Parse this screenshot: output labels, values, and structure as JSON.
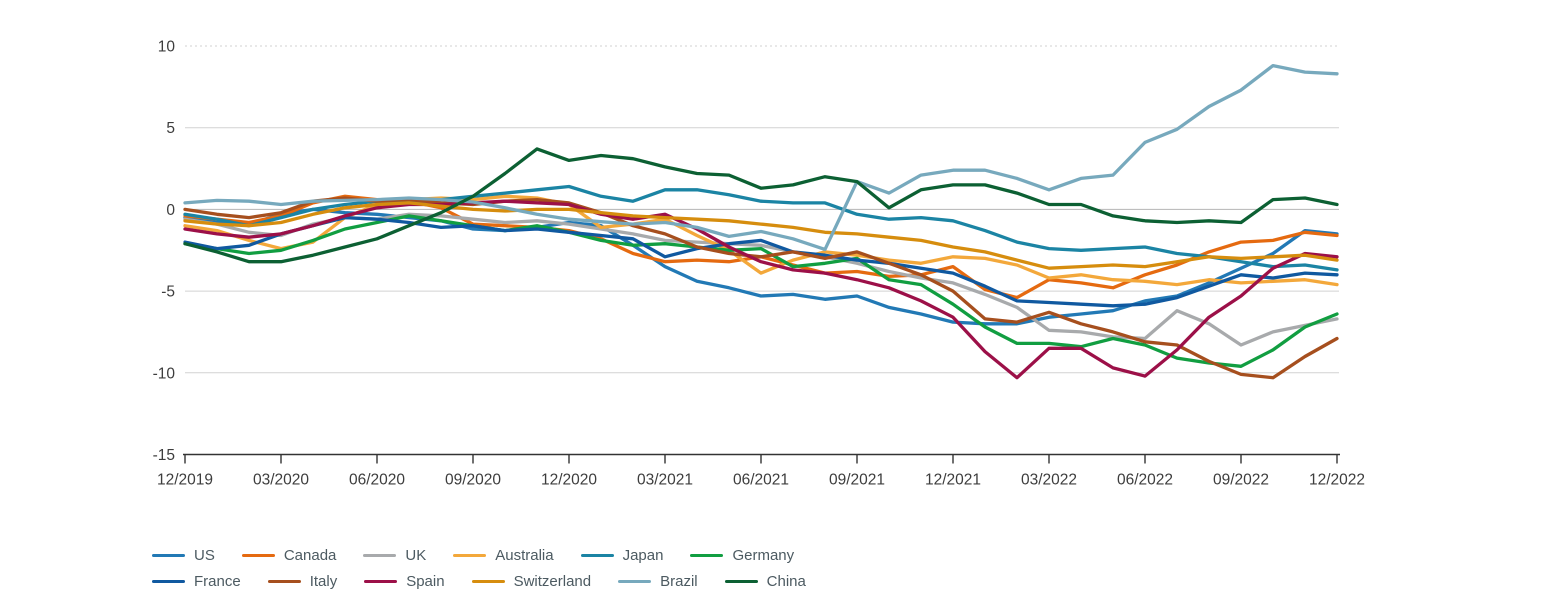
{
  "chart_data": {
    "type": "line",
    "title": "",
    "xlabel": "",
    "ylabel": "",
    "ylim": [
      -15,
      10
    ],
    "y_ticks": [
      10,
      5,
      0,
      -5,
      -10,
      -15
    ],
    "y_gridlines": [
      10,
      5,
      0,
      -5,
      -10
    ],
    "grid": "horizontal",
    "legend_position": "bottom-left",
    "x_tick_labels": [
      "12/2019",
      "03/2020",
      "06/2020",
      "09/2020",
      "12/2020",
      "03/2021",
      "06/2021",
      "09/2021",
      "12/2021",
      "03/2022",
      "06/2022",
      "09/2022",
      "12/2022"
    ],
    "x_points_per_tick": 3,
    "axis_label_color": "#3d3d3d",
    "gridline_color": "#d2d2d2",
    "zero_line_color": "#b5b5b5",
    "axis_line_color": "#333333",
    "series": [
      {
        "name": "US",
        "color": "#2279b5",
        "values": [
          -0.5,
          -0.8,
          -0.9,
          -0.3,
          0.0,
          -0.2,
          -0.3,
          -0.5,
          -0.7,
          -1.2,
          -1.3,
          -1.1,
          -0.8,
          -1.0,
          -2.2,
          -3.5,
          -4.4,
          -4.8,
          -5.3,
          -5.2,
          -5.5,
          -5.3,
          -6.0,
          -6.4,
          -6.9,
          -7.0,
          -7.0,
          -6.6,
          -6.4,
          -6.2,
          -5.6,
          -5.3,
          -4.5,
          -3.6,
          -2.7,
          -1.3,
          -1.5
        ]
      },
      {
        "name": "Canada",
        "color": "#e56a10",
        "values": [
          -0.4,
          -0.6,
          -0.8,
          -0.4,
          0.4,
          0.8,
          0.6,
          0.5,
          0.1,
          -0.9,
          -1.0,
          -1.1,
          -1.3,
          -1.8,
          -2.7,
          -3.2,
          -3.1,
          -3.2,
          -2.9,
          -3.4,
          -3.9,
          -3.8,
          -4.1,
          -4.0,
          -3.5,
          -4.9,
          -5.4,
          -4.3,
          -4.5,
          -4.8,
          -4.0,
          -3.4,
          -2.6,
          -2.0,
          -1.9,
          -1.4,
          -1.6
        ]
      },
      {
        "name": "UK",
        "color": "#a8aaac",
        "values": [
          -0.6,
          -0.9,
          -1.4,
          -1.6,
          -0.9,
          -0.5,
          -0.6,
          -0.3,
          -0.4,
          -0.6,
          -0.8,
          -0.7,
          -0.9,
          -1.2,
          -1.5,
          -1.9,
          -2.0,
          -2.1,
          -2.2,
          -2.6,
          -2.9,
          -3.3,
          -3.8,
          -4.2,
          -4.5,
          -5.2,
          -6.0,
          -7.4,
          -7.5,
          -7.8,
          -7.9,
          -6.2,
          -7.0,
          -8.3,
          -7.5,
          -7.1,
          -6.7
        ]
      },
      {
        "name": "Australia",
        "color": "#f3a83b",
        "values": [
          -1.0,
          -1.3,
          -1.9,
          -2.4,
          -2.0,
          -0.5,
          0.3,
          0.6,
          0.7,
          0.6,
          0.8,
          0.7,
          0.3,
          -1.1,
          -0.9,
          -0.6,
          -1.6,
          -2.5,
          -3.9,
          -3.1,
          -2.6,
          -2.8,
          -3.1,
          -3.3,
          -2.9,
          -3.0,
          -3.4,
          -4.2,
          -4.0,
          -4.3,
          -4.4,
          -4.6,
          -4.3,
          -4.5,
          -4.4,
          -4.3,
          -4.6
        ]
      },
      {
        "name": "Japan",
        "color": "#1b84a4",
        "values": [
          -0.3,
          -0.6,
          -1.0,
          -0.5,
          0.0,
          0.3,
          0.5,
          0.4,
          0.6,
          0.8,
          1.0,
          1.2,
          1.4,
          0.8,
          0.5,
          1.2,
          1.2,
          0.9,
          0.5,
          0.4,
          0.4,
          -0.3,
          -0.6,
          -0.5,
          -0.7,
          -1.3,
          -2.0,
          -2.4,
          -2.5,
          -2.4,
          -2.3,
          -2.7,
          -2.9,
          -3.2,
          -3.5,
          -3.4,
          -3.7
        ]
      },
      {
        "name": "Germany",
        "color": "#119e41",
        "values": [
          -2.1,
          -2.4,
          -2.7,
          -2.5,
          -1.9,
          -1.2,
          -0.8,
          -0.4,
          -0.7,
          -1.0,
          -1.3,
          -1.0,
          -1.4,
          -1.9,
          -2.2,
          -2.1,
          -2.3,
          -2.5,
          -2.4,
          -3.5,
          -3.3,
          -3.0,
          -4.3,
          -4.6,
          -5.8,
          -7.2,
          -8.2,
          -8.2,
          -8.4,
          -7.9,
          -8.3,
          -9.1,
          -9.4,
          -9.6,
          -8.6,
          -7.2,
          -6.4
        ]
      },
      {
        "name": "France",
        "color": "#1059a0",
        "values": [
          -2.0,
          -2.4,
          -2.2,
          -1.5,
          -1.0,
          -0.5,
          -0.6,
          -0.8,
          -1.1,
          -1.0,
          -1.3,
          -1.2,
          -1.4,
          -1.6,
          -1.8,
          -2.9,
          -2.4,
          -2.1,
          -1.9,
          -2.6,
          -2.8,
          -3.1,
          -3.3,
          -3.6,
          -3.9,
          -4.7,
          -5.6,
          -5.7,
          -5.8,
          -5.9,
          -5.8,
          -5.4,
          -4.7,
          -4.0,
          -4.2,
          -3.9,
          -4.0
        ]
      },
      {
        "name": "Italy",
        "color": "#a64f1e",
        "values": [
          0.0,
          -0.3,
          -0.5,
          -0.2,
          0.5,
          0.7,
          0.5,
          0.6,
          0.4,
          0.3,
          0.5,
          0.6,
          0.4,
          -0.2,
          -1.0,
          -1.5,
          -2.3,
          -2.7,
          -2.9,
          -2.6,
          -3.0,
          -2.6,
          -3.3,
          -4.0,
          -5.0,
          -6.7,
          -6.9,
          -6.3,
          -7.0,
          -7.5,
          -8.1,
          -8.3,
          -9.3,
          -10.1,
          -10.3,
          -9.0,
          -7.9
        ]
      },
      {
        "name": "Spain",
        "color": "#9c1048",
        "values": [
          -1.2,
          -1.5,
          -1.7,
          -1.5,
          -1.0,
          -0.4,
          0.1,
          0.3,
          0.3,
          0.4,
          0.5,
          0.4,
          0.3,
          -0.3,
          -0.6,
          -0.3,
          -1.2,
          -2.3,
          -3.2,
          -3.7,
          -3.9,
          -4.3,
          -4.8,
          -5.6,
          -6.6,
          -8.7,
          -10.3,
          -8.5,
          -8.5,
          -9.7,
          -10.2,
          -8.6,
          -6.6,
          -5.3,
          -3.6,
          -2.7,
          -2.9
        ]
      },
      {
        "name": "Switzerland",
        "color": "#d68d0e",
        "values": [
          -0.7,
          -0.9,
          -1.0,
          -0.8,
          -0.3,
          0.1,
          0.3,
          0.4,
          0.2,
          0.0,
          -0.1,
          0.0,
          0.0,
          -0.2,
          -0.4,
          -0.5,
          -0.6,
          -0.7,
          -0.9,
          -1.1,
          -1.4,
          -1.5,
          -1.7,
          -1.9,
          -2.3,
          -2.6,
          -3.1,
          -3.6,
          -3.5,
          -3.4,
          -3.5,
          -3.2,
          -2.9,
          -3.0,
          -2.9,
          -2.8,
          -3.1
        ]
      },
      {
        "name": "Brazil",
        "color": "#77a9bd",
        "values": [
          0.4,
          0.55,
          0.5,
          0.3,
          0.5,
          0.55,
          0.6,
          0.7,
          0.6,
          0.45,
          0.1,
          -0.3,
          -0.6,
          -0.75,
          -0.9,
          -0.8,
          -1.1,
          -1.65,
          -1.35,
          -1.8,
          -2.45,
          1.7,
          1.0,
          2.1,
          2.4,
          2.4,
          1.9,
          1.2,
          1.9,
          2.1,
          4.1,
          4.9,
          6.3,
          7.3,
          8.8,
          8.4,
          8.3
        ]
      },
      {
        "name": "China",
        "color": "#0c6033",
        "values": [
          -2.1,
          -2.6,
          -3.2,
          -3.2,
          -2.8,
          -2.3,
          -1.8,
          -1.0,
          -0.2,
          0.8,
          2.2,
          3.7,
          3.0,
          3.3,
          3.1,
          2.6,
          2.2,
          2.1,
          1.3,
          1.5,
          2.0,
          1.7,
          0.1,
          1.2,
          1.5,
          1.5,
          1.0,
          0.3,
          0.3,
          -0.4,
          -0.7,
          -0.8,
          -0.7,
          -0.8,
          0.6,
          0.7,
          0.3
        ]
      }
    ]
  },
  "legend": {
    "rows": [
      [
        "US",
        "Canada",
        "UK",
        "Australia",
        "Japan",
        "Germany"
      ],
      [
        "France",
        "Italy",
        "Spain",
        "Switzerland",
        "Brazil",
        "China"
      ]
    ]
  }
}
